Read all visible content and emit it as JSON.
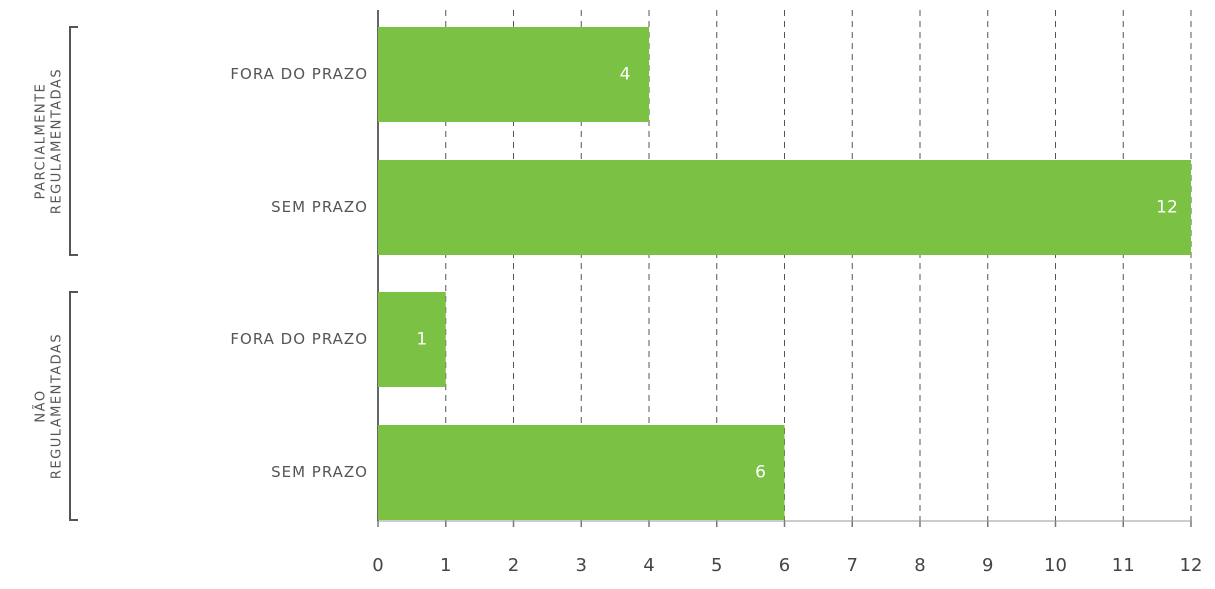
{
  "chart_data": {
    "type": "bar",
    "orientation": "horizontal",
    "color": "#7bc143",
    "groups": [
      {
        "label": [
          "PARCIALMENTE",
          "REGULAMENTADAS"
        ],
        "categories": [
          "FORA DO PRAZO",
          "SEM PRAZO"
        ],
        "values": [
          4,
          12
        ]
      },
      {
        "label": [
          "NÃO",
          "REGULAMENTADAS"
        ],
        "categories": [
          "FORA DO PRAZO",
          "SEM PRAZO"
        ],
        "values": [
          1,
          6
        ]
      }
    ],
    "xlim": [
      0,
      12
    ],
    "xticks": [
      0,
      1,
      2,
      3,
      4,
      5,
      6,
      7,
      8,
      9,
      10,
      11,
      12
    ],
    "grid": true
  }
}
